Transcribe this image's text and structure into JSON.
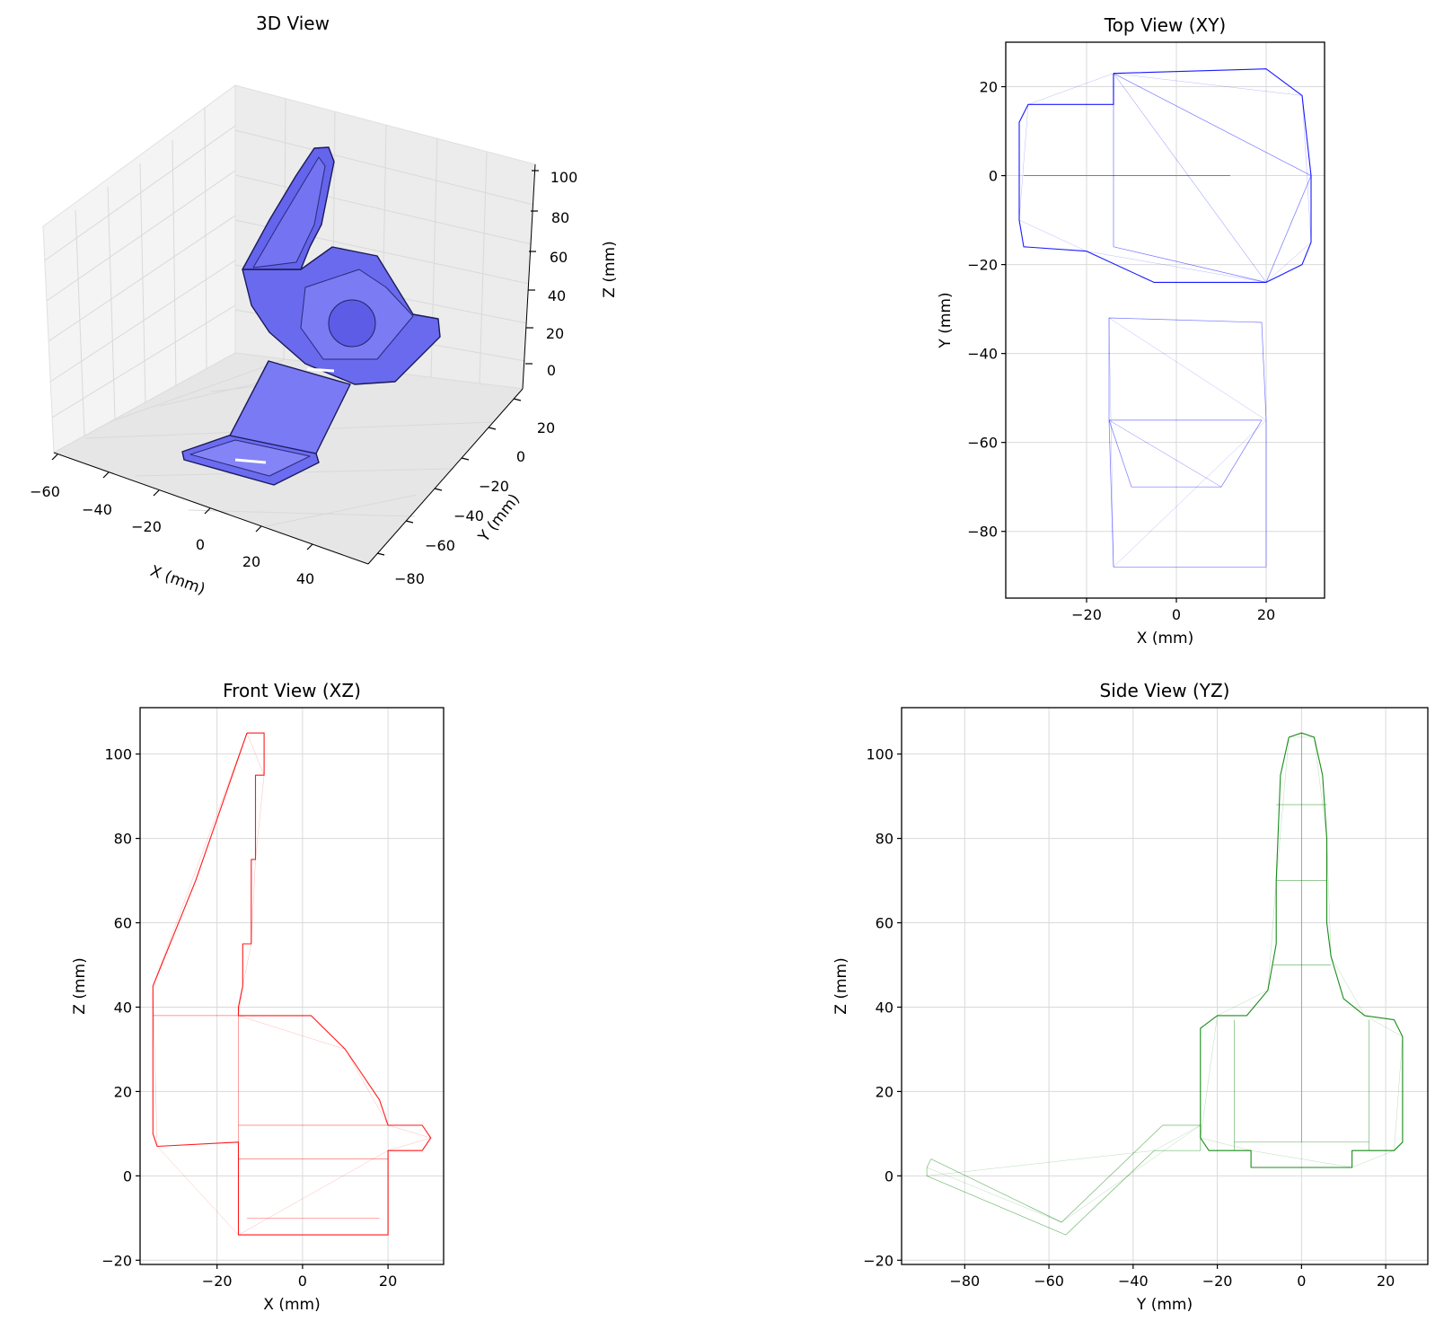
{
  "chart_data": [
    {
      "type": "wireframe-3d",
      "title": "3D View",
      "xlabel": "X (mm)",
      "ylabel": "Y (mm)",
      "zlabel": "Z (mm)",
      "xticks": [
        "−60",
        "−40",
        "−20",
        "0",
        "20",
        "40"
      ],
      "yticks": [
        "20",
        "0",
        "−20",
        "−40",
        "−60",
        "−80"
      ],
      "zticks": [
        "100",
        "80",
        "60",
        "40",
        "20",
        "0"
      ],
      "color": "#7070f0"
    },
    {
      "type": "wireframe-projection",
      "title": "Top View (XY)",
      "xlabel": "X (mm)",
      "ylabel": "Y (mm)",
      "xlim": [
        -38,
        33
      ],
      "ylim": [
        -95,
        30
      ],
      "xticks": [
        -20,
        0,
        20
      ],
      "yticks": [
        20,
        0,
        -20,
        -40,
        -60,
        -80
      ],
      "xtick_labels": [
        "−20",
        "0",
        "20"
      ],
      "ytick_labels": [
        "20",
        "0",
        "−20",
        "−40",
        "−60",
        "−80"
      ],
      "grid": true,
      "color": "#0000ff",
      "outlines": [
        [
          [
            -14,
            23
          ],
          [
            20,
            24
          ],
          [
            28,
            18
          ],
          [
            30,
            0
          ],
          [
            30,
            -15
          ],
          [
            28,
            -20
          ],
          [
            20,
            -24
          ],
          [
            -5,
            -24
          ],
          [
            -20,
            -17
          ],
          [
            -34,
            -16
          ],
          [
            -35,
            -10
          ],
          [
            -35,
            12
          ],
          [
            -33,
            16
          ],
          [
            -14,
            16
          ],
          [
            -14,
            23
          ]
        ],
        [
          [
            -15,
            -32
          ],
          [
            -15,
            -55
          ],
          [
            -14,
            -88
          ],
          [
            20,
            -88
          ],
          [
            20,
            -55
          ],
          [
            19,
            -33
          ],
          [
            -15,
            -32
          ]
        ],
        [
          [
            -14,
            23
          ],
          [
            -14,
            -16
          ],
          [
            20,
            -24
          ],
          [
            30,
            0
          ],
          [
            -14,
            23
          ]
        ],
        [
          [
            -34,
            0
          ],
          [
            -5,
            0
          ],
          [
            12,
            0
          ]
        ],
        [
          [
            -15,
            -55
          ],
          [
            19,
            -55
          ],
          [
            10,
            -70
          ],
          [
            -10,
            -70
          ],
          [
            -15,
            -55
          ]
        ]
      ]
    },
    {
      "type": "wireframe-projection",
      "title": "Front View (XZ)",
      "xlabel": "X (mm)",
      "ylabel": "Z (mm)",
      "xlim": [
        -38,
        33
      ],
      "ylim": [
        -21,
        111
      ],
      "xticks": [
        -20,
        0,
        20
      ],
      "yticks": [
        100,
        80,
        60,
        40,
        20,
        0,
        -20
      ],
      "xtick_labels": [
        "−20",
        "0",
        "20"
      ],
      "ytick_labels": [
        "100",
        "80",
        "60",
        "40",
        "20",
        "0",
        "−20"
      ],
      "grid": true,
      "color": "#ff0000",
      "outlines": [
        [
          [
            -13,
            105
          ],
          [
            -9,
            105
          ],
          [
            -9,
            95
          ],
          [
            -11,
            95
          ],
          [
            -11,
            75
          ],
          [
            -12,
            75
          ],
          [
            -12,
            55
          ],
          [
            -14,
            55
          ],
          [
            -14,
            45
          ],
          [
            -15,
            40
          ],
          [
            -15,
            38
          ],
          [
            2,
            38
          ],
          [
            10,
            30
          ],
          [
            18,
            18
          ],
          [
            20,
            12
          ],
          [
            28,
            12
          ],
          [
            30,
            9
          ],
          [
            28,
            6
          ],
          [
            20,
            6
          ],
          [
            20,
            -14
          ],
          [
            -15,
            -14
          ],
          [
            -15,
            8
          ],
          [
            -34,
            7
          ],
          [
            -35,
            10
          ],
          [
            -35,
            45
          ],
          [
            -25,
            70
          ],
          [
            -13,
            105
          ]
        ],
        [
          [
            -15,
            12
          ],
          [
            20,
            12
          ]
        ],
        [
          [
            -15,
            4
          ],
          [
            20,
            4
          ]
        ],
        [
          [
            -15,
            38
          ],
          [
            -15,
            8
          ]
        ],
        [
          [
            -35,
            38
          ],
          [
            -15,
            38
          ]
        ],
        [
          [
            -13,
            -10
          ],
          [
            18,
            -10
          ]
        ]
      ]
    },
    {
      "type": "wireframe-projection",
      "title": "Side View (YZ)",
      "xlabel": "Y (mm)",
      "ylabel": "Z (mm)",
      "xlim": [
        -95,
        30
      ],
      "ylim": [
        -21,
        111
      ],
      "xticks": [
        -80,
        -60,
        -40,
        -20,
        0,
        20
      ],
      "yticks": [
        100,
        80,
        60,
        40,
        20,
        0,
        -20
      ],
      "xtick_labels": [
        "−80",
        "−60",
        "−40",
        "−20",
        "0",
        "20"
      ],
      "ytick_labels": [
        "100",
        "80",
        "60",
        "40",
        "20",
        "0",
        "−20"
      ],
      "grid": true,
      "color": "#008000",
      "outlines": [
        [
          [
            -3,
            104
          ],
          [
            0,
            105
          ],
          [
            3,
            104
          ],
          [
            5,
            95
          ],
          [
            6,
            80
          ],
          [
            6,
            60
          ],
          [
            7,
            52
          ],
          [
            10,
            42
          ],
          [
            15,
            38
          ],
          [
            22,
            37
          ],
          [
            24,
            33
          ],
          [
            24,
            8
          ],
          [
            22,
            6
          ],
          [
            12,
            6
          ],
          [
            12,
            2
          ],
          [
            -12,
            2
          ],
          [
            -12,
            6
          ],
          [
            -22,
            6
          ],
          [
            -24,
            9
          ],
          [
            -24,
            35
          ],
          [
            -20,
            38
          ],
          [
            -13,
            38
          ],
          [
            -8,
            44
          ],
          [
            -6,
            55
          ],
          [
            -6,
            70
          ],
          [
            -5,
            95
          ],
          [
            -3,
            104
          ]
        ],
        [
          [
            -89,
            2
          ],
          [
            -88,
            4
          ],
          [
            -57,
            -11
          ],
          [
            -33,
            12
          ],
          [
            -24,
            12
          ],
          [
            -24,
            6
          ],
          [
            -35,
            6
          ],
          [
            -56,
            -14
          ],
          [
            -89,
            0
          ],
          [
            -89,
            2
          ]
        ],
        [
          [
            -6,
            88
          ],
          [
            6,
            88
          ]
        ],
        [
          [
            -6,
            70
          ],
          [
            6,
            70
          ]
        ],
        [
          [
            -7,
            50
          ],
          [
            7,
            50
          ]
        ],
        [
          [
            -16,
            37
          ],
          [
            -16,
            6
          ]
        ],
        [
          [
            16,
            37
          ],
          [
            16,
            6
          ]
        ],
        [
          [
            0,
            105
          ],
          [
            0,
            8
          ]
        ],
        [
          [
            -16,
            8
          ],
          [
            16,
            8
          ]
        ]
      ]
    }
  ]
}
